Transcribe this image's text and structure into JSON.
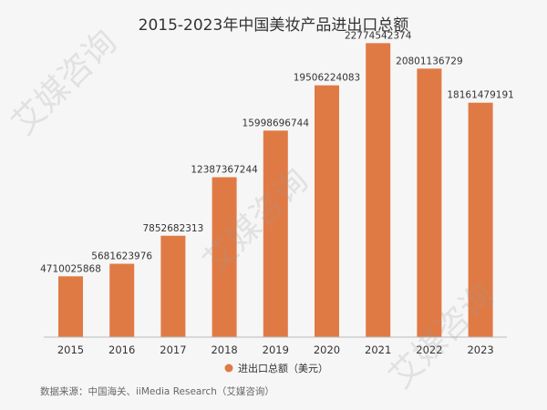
{
  "chart_data": {
    "type": "bar",
    "title": "2015-2023年中国美妆产品进出口总额",
    "categories": [
      "2015",
      "2016",
      "2017",
      "2018",
      "2019",
      "2020",
      "2021",
      "2022",
      "2023"
    ],
    "series": [
      {
        "name": "进出口总额（美元）",
        "values": [
          4710025868,
          5681623976,
          7852682313,
          12387367244,
          15998696744,
          19506224083,
          22774542374,
          20801136729,
          18161479191
        ],
        "labels": [
          "4710025868",
          "5681623976",
          "7852682313",
          "12387367244",
          "15998696744",
          "19506224083",
          "22774542374",
          "20801136729",
          "18161479191"
        ]
      }
    ],
    "ylim": [
      0,
      24000000000
    ],
    "grid": false,
    "legend_position": "bottom-center",
    "color": "#e07a45"
  },
  "source": "数据来源：中国海关、iiMedia Research（艾媒咨询）",
  "watermark": "艾媒咨询"
}
